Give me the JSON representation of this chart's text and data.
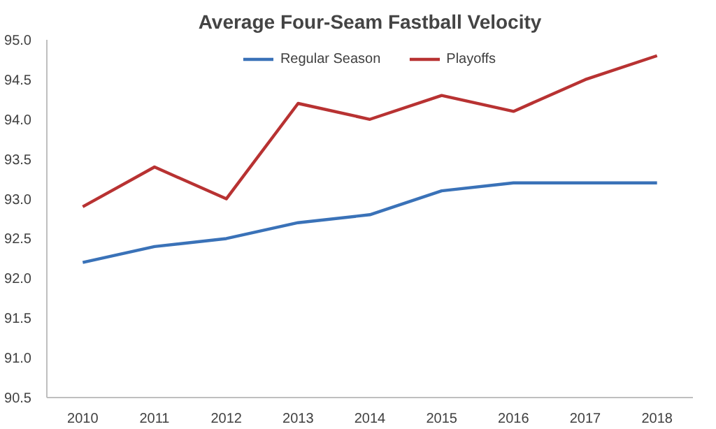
{
  "chart_data": {
    "type": "line",
    "title": "Average Four-Seam Fastball Velocity",
    "categories": [
      "2010",
      "2011",
      "2012",
      "2013",
      "2014",
      "2015",
      "2016",
      "2017",
      "2018"
    ],
    "series": [
      {
        "name": "Regular Season",
        "color": "#3a72b8",
        "values": [
          92.2,
          92.4,
          92.5,
          92.7,
          92.8,
          93.1,
          93.2,
          93.2,
          93.2
        ]
      },
      {
        "name": "Playoffs",
        "color": "#b83232",
        "values": [
          92.9,
          93.4,
          93.0,
          94.2,
          94.0,
          94.3,
          94.1,
          94.5,
          94.8
        ]
      }
    ],
    "ylim": [
      90.5,
      95.0
    ],
    "yticks": [
      {
        "value": 90.5,
        "label": "90.5"
      },
      {
        "value": 91,
        "label": "91.0"
      },
      {
        "value": 91.5,
        "label": "91.5"
      },
      {
        "value": 92,
        "label": "92.0"
      },
      {
        "value": 92.5,
        "label": "92.5"
      },
      {
        "value": 93,
        "label": "93.0"
      },
      {
        "value": 93.5,
        "label": "93.5"
      },
      {
        "value": 94,
        "label": "94.0"
      },
      {
        "value": 94.5,
        "label": "94.5"
      },
      {
        "value": 95,
        "label": "95.0"
      }
    ],
    "grid": false,
    "legend": "top"
  }
}
